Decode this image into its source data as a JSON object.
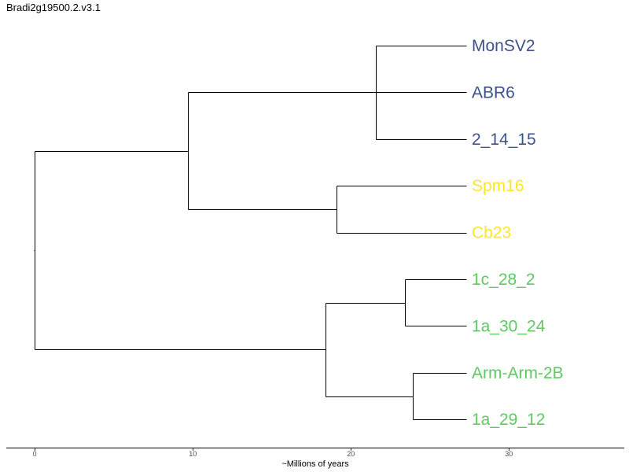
{
  "title": "Bradi2g19500.2.v3.1",
  "axis": {
    "label": "~Millions of years",
    "ticks": [
      0,
      10,
      20,
      30
    ],
    "range": [
      -1.8,
      37.3
    ]
  },
  "colors": {
    "blue": "#3b528b",
    "yellow": "#fde725",
    "green": "#5ec962",
    "branch": "#000000",
    "axis": "#000000"
  },
  "chart_data": {
    "type": "dendrogram",
    "x_unit": "~Millions of years",
    "leaves": [
      {
        "name": "MonSV2",
        "group_color": "blue",
        "x": 27.3
      },
      {
        "name": "ABR6",
        "group_color": "blue",
        "x": 27.3
      },
      {
        "name": "2_14_15",
        "group_color": "blue",
        "x": 27.3
      },
      {
        "name": "Spm16",
        "group_color": "yellow",
        "x": 27.3
      },
      {
        "name": "Cb23",
        "group_color": "yellow",
        "x": 27.3
      },
      {
        "name": "1c_28_2",
        "group_color": "green",
        "x": 27.3
      },
      {
        "name": "1a_30_24",
        "group_color": "green",
        "x": 27.3
      },
      {
        "name": "Arm-Arm-2B",
        "group_color": "green",
        "x": 27.3
      },
      {
        "name": "1a_29_12",
        "group_color": "green",
        "x": 27.3
      }
    ],
    "nodes": [
      {
        "id": "n1",
        "x": 21.6,
        "children": [
          "leaf:0",
          "leaf:2"
        ]
      },
      {
        "id": "n2",
        "x": 19.1,
        "children": [
          "leaf:3",
          "leaf:4"
        ]
      },
      {
        "id": "n3",
        "x": 9.7,
        "children": [
          "node:n1",
          "node:n2"
        ]
      },
      {
        "id": "n4",
        "x": 23.4,
        "children": [
          "leaf:5",
          "leaf:6"
        ]
      },
      {
        "id": "n5",
        "x": 23.9,
        "children": [
          "leaf:7",
          "leaf:8"
        ]
      },
      {
        "id": "n6",
        "x": 18.4,
        "children": [
          "node:n4",
          "node:n5"
        ]
      },
      {
        "id": "root",
        "x": 0.0,
        "children": [
          "node:n3",
          "node:n6"
        ]
      }
    ],
    "extra_attachments": [
      {
        "leaf": 1,
        "to_node": "n3"
      }
    ]
  }
}
